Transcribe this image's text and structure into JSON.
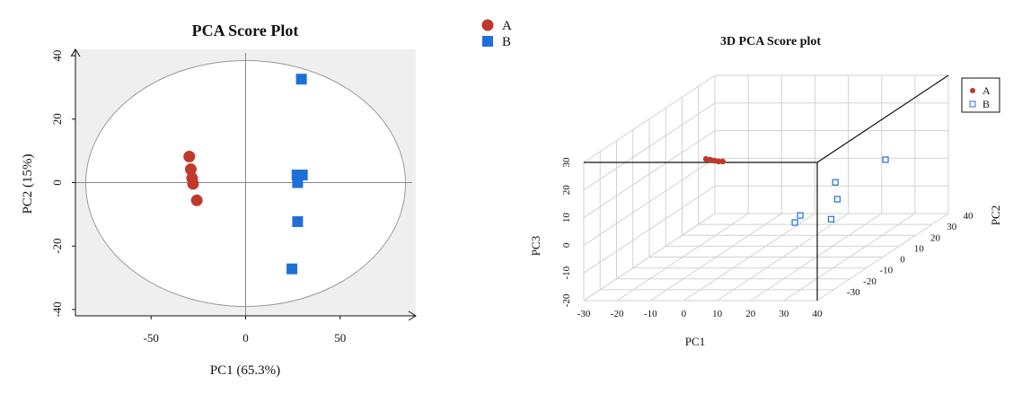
{
  "chart_data": [
    {
      "type": "scatter",
      "title": "PCA Score Plot",
      "xlabel": "PC1 (65.3%)",
      "ylabel": "PC2 (15%)",
      "xlim": [
        -90,
        90
      ],
      "ylim": [
        -42,
        42
      ],
      "xticks": [
        -50,
        0,
        50
      ],
      "yticks": [
        40,
        20,
        0,
        -20,
        -40
      ],
      "plot_background": "#efefef",
      "confidence_ellipse": true,
      "legend": {
        "placement": "top-right",
        "entries": [
          "A",
          "B"
        ]
      },
      "series": [
        {
          "name": "A",
          "marker": "circle",
          "color": "#c0392b",
          "x": [
            -29.8,
            -29.0,
            -28.3,
            -27.8,
            -25.8
          ],
          "y": [
            8.2,
            4.2,
            1.4,
            -0.4,
            -5.6
          ]
        },
        {
          "name": "B",
          "marker": "square",
          "color": "#1f6fd9",
          "x": [
            29.5,
            27.2,
            30.0,
            27.5,
            27.5,
            24.5
          ],
          "y": [
            32.6,
            2.4,
            2.4,
            0.0,
            -12.3,
            -27.2
          ]
        }
      ]
    },
    {
      "type": "scatter",
      "title": "3D PCA Score plot",
      "xlabel": "PC1",
      "ylabel": "PC2",
      "zlabel": "PC3",
      "xlim": [
        -30,
        40
      ],
      "ylim": [
        -40,
        40
      ],
      "zlim": [
        -20,
        30
      ],
      "xticks": [
        -30,
        -20,
        -10,
        0,
        10,
        20,
        30,
        40
      ],
      "yticks": [
        -30,
        -20,
        -10,
        0,
        10,
        20,
        30,
        40
      ],
      "zticks": [
        -20,
        -10,
        0,
        10,
        20,
        30
      ],
      "grid": true,
      "legend": {
        "placement": "top-right",
        "entries": [
          "A",
          "B"
        ]
      },
      "series": [
        {
          "name": "A",
          "marker": "filled-circle",
          "color": "#c0392b",
          "points": [
            [
              -13.0,
              0.0,
              15.5
            ],
            [
              -12.0,
              0.5,
              15.0
            ],
            [
              -11.0,
              1.0,
              14.5
            ],
            [
              -10.0,
              1.5,
              14.0
            ],
            [
              -9.0,
              2.0,
              13.8
            ]
          ]
        },
        {
          "name": "B",
          "marker": "open-square",
          "color": "#1f6fd9",
          "points": [
            [
              24.8,
              32.6,
              2.4
            ],
            [
              24.6,
              2.4,
              6.1
            ],
            [
              25.2,
              2.4,
              0.0
            ],
            [
              24.5,
              0.0,
              -6.3
            ],
            [
              21.3,
              -12.3,
              -0.1
            ],
            [
              27.0,
              -27.2,
              3.2
            ]
          ]
        }
      ]
    }
  ]
}
